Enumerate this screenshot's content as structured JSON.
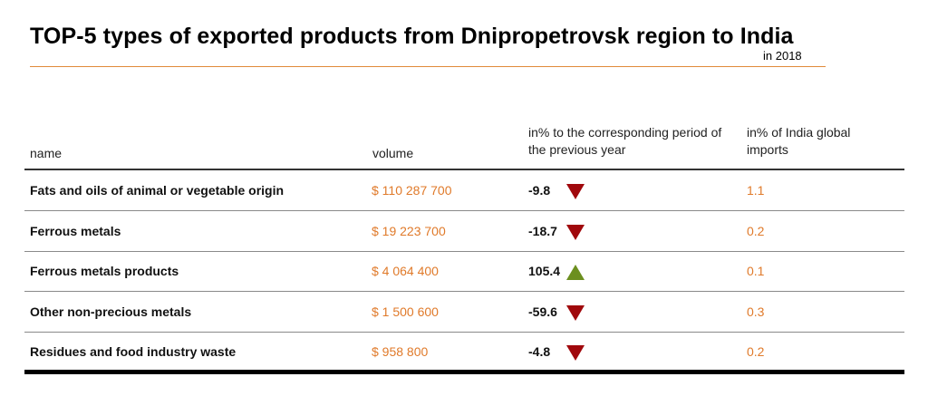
{
  "header": {
    "title": "TOP-5 types of exported products from Dnipropetrovsk region to India",
    "subtitle": "in 2018"
  },
  "columns": {
    "name": "name",
    "volume": "volume",
    "change": "in% to the corresponding period of the previous year",
    "share": "in% of India global imports"
  },
  "colors": {
    "accent": "#e07a2a",
    "decrease": "#a0080c",
    "increase": "#6c8f1f"
  },
  "chart_data": {
    "type": "table",
    "title": "TOP-5 types of exported products from Dnipropetrovsk region to India",
    "subtitle": "in 2018",
    "columns": [
      "name",
      "volume",
      "in% to the corresponding period of the previous year",
      "in% of India global imports"
    ],
    "rows": [
      {
        "name": "Fats and oils of animal or vegetable origin",
        "volume": "$ 110 287 700",
        "change": "-9.8",
        "trend": "down",
        "share": "1.1"
      },
      {
        "name": "Ferrous metals",
        "volume": "$ 19 223 700",
        "change": "-18.7",
        "trend": "down",
        "share": "0.2"
      },
      {
        "name": "Ferrous metals products",
        "volume": "$ 4 064 400",
        "change": "105.4",
        "trend": "up",
        "share": "0.1"
      },
      {
        "name": "Other non-precious metals",
        "volume": "$  1 500 600",
        "change": "-59.6",
        "trend": "down",
        "share": "0.3"
      },
      {
        "name": "Residues and food industry waste",
        "volume": "$  958 800",
        "change": "-4.8",
        "trend": "down",
        "share": "0.2"
      }
    ]
  }
}
